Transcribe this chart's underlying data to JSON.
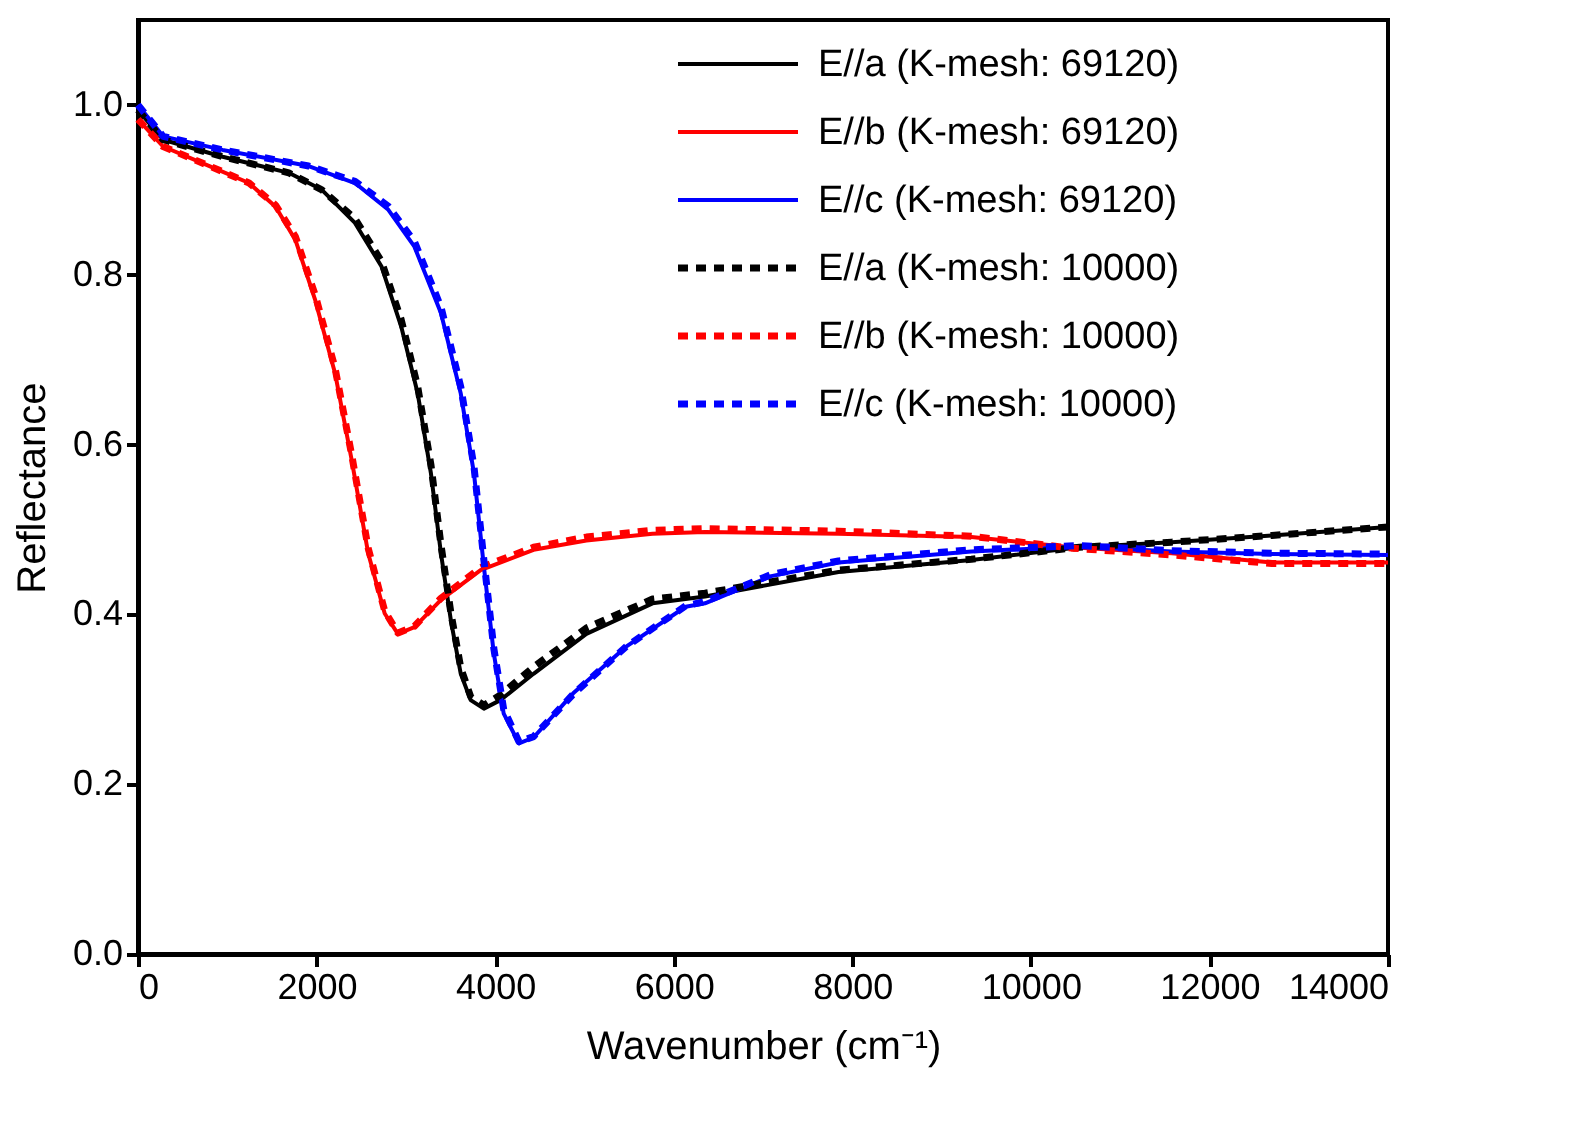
{
  "chart_data": {
    "type": "line",
    "xlabel": "Wavenumber (cm⁻¹)",
    "ylabel": "Reflectance",
    "xlim": [
      0,
      14000
    ],
    "ylim": [
      0,
      1.1
    ],
    "xticks": [
      0,
      2000,
      4000,
      6000,
      8000,
      10000,
      12000,
      14000
    ],
    "yticks": [
      {
        "value": 0,
        "label": "0.0"
      },
      0.2,
      0.4,
      0.6,
      0.8,
      {
        "value": 1,
        "label": "1.0"
      }
    ],
    "grid": false,
    "legend": "top right",
    "series": [
      {
        "name": "E//a (K-mesh: 69120)",
        "color": "#000000",
        "line_style": "solid",
        "x": [
          0,
          281,
          948,
          1689,
          2059,
          2430,
          2726,
          2948,
          3133,
          3281,
          3393,
          3504,
          3615,
          3726,
          3874,
          4059,
          4430,
          5022,
          5763,
          6350,
          7846,
          9334,
          10545,
          11577,
          12699,
          14000
        ],
        "values": [
          0.994,
          0.959,
          0.939,
          0.92,
          0.9,
          0.861,
          0.81,
          0.739,
          0.66,
          0.566,
          0.472,
          0.393,
          0.33,
          0.299,
          0.289,
          0.299,
          0.33,
          0.377,
          0.413,
          0.421,
          0.45,
          0.464,
          0.479,
          0.485,
          0.493,
          0.503
        ]
      },
      {
        "name": "E//b (K-mesh: 69120)",
        "color": "#ff0000",
        "line_style": "solid",
        "x": [
          0,
          281,
          800,
          1244,
          1541,
          1763,
          1985,
          2207,
          2393,
          2578,
          2763,
          2911,
          3096,
          3393,
          3837,
          4430,
          5022,
          5763,
          6350,
          7846,
          9334,
          10455,
          11577,
          12699,
          14000
        ],
        "values": [
          0.983,
          0.951,
          0.928,
          0.908,
          0.88,
          0.841,
          0.77,
          0.684,
          0.582,
          0.472,
          0.401,
          0.377,
          0.385,
          0.417,
          0.452,
          0.476,
          0.487,
          0.495,
          0.497,
          0.495,
          0.491,
          0.479,
          0.472,
          0.461,
          0.461
        ]
      },
      {
        "name": "E//c (K-mesh: 69120)",
        "color": "#0000ff",
        "line_style": "solid",
        "x": [
          0,
          281,
          948,
          1911,
          2430,
          2800,
          3096,
          3393,
          3615,
          3763,
          3874,
          3985,
          4096,
          4267,
          4430,
          4874,
          5467,
          6133,
          6350,
          7093,
          7846,
          9334,
          10545,
          11577,
          12699,
          14000
        ],
        "values": [
          1.0,
          0.963,
          0.947,
          0.928,
          0.908,
          0.877,
          0.833,
          0.755,
          0.66,
          0.566,
          0.456,
          0.354,
          0.283,
          0.248,
          0.255,
          0.307,
          0.362,
          0.409,
          0.413,
          0.445,
          0.461,
          0.474,
          0.48,
          0.474,
          0.471,
          0.47
        ]
      },
      {
        "name": "E//a (K-mesh: 10000)",
        "color": "#000000",
        "line_style": "dashed",
        "x": [
          0,
          281,
          948,
          1689,
          2059,
          2430,
          2726,
          2948,
          3133,
          3281,
          3393,
          3504,
          3615,
          3726,
          3874,
          4059,
          4430,
          5022,
          5763,
          6350,
          7846,
          9334,
          10545,
          11577,
          12699,
          14000
        ],
        "values": [
          0.994,
          0.959,
          0.939,
          0.92,
          0.9,
          0.866,
          0.816,
          0.747,
          0.668,
          0.576,
          0.482,
          0.402,
          0.337,
          0.303,
          0.293,
          0.305,
          0.338,
          0.384,
          0.418,
          0.425,
          0.452,
          0.465,
          0.479,
          0.485,
          0.493,
          0.503
        ]
      },
      {
        "name": "E//b (K-mesh: 10000)",
        "color": "#ff0000",
        "line_style": "dashed",
        "x": [
          0,
          281,
          800,
          1244,
          1541,
          1763,
          1985,
          2207,
          2393,
          2578,
          2763,
          2911,
          3096,
          3393,
          3837,
          4430,
          5022,
          5763,
          6350,
          7846,
          9334,
          10455,
          11577,
          12699,
          14000
        ],
        "values": [
          0.983,
          0.951,
          0.928,
          0.908,
          0.882,
          0.845,
          0.776,
          0.69,
          0.588,
          0.478,
          0.404,
          0.378,
          0.386,
          0.419,
          0.455,
          0.479,
          0.491,
          0.499,
          0.501,
          0.498,
          0.492,
          0.478,
          0.47,
          0.46,
          0.46
        ]
      },
      {
        "name": "E//c (K-mesh: 10000)",
        "color": "#0000ff",
        "line_style": "dashed",
        "x": [
          0,
          281,
          948,
          1911,
          2430,
          2800,
          3096,
          3393,
          3615,
          3763,
          3874,
          3985,
          4096,
          4267,
          4430,
          4874,
          5467,
          6133,
          6350,
          7093,
          7846,
          9334,
          10545,
          11577,
          12699,
          14000
        ],
        "values": [
          1.0,
          0.963,
          0.947,
          0.928,
          0.91,
          0.881,
          0.839,
          0.762,
          0.668,
          0.574,
          0.464,
          0.36,
          0.288,
          0.25,
          0.256,
          0.306,
          0.362,
          0.41,
          0.415,
          0.447,
          0.463,
          0.476,
          0.481,
          0.475,
          0.472,
          0.471
        ]
      }
    ]
  }
}
